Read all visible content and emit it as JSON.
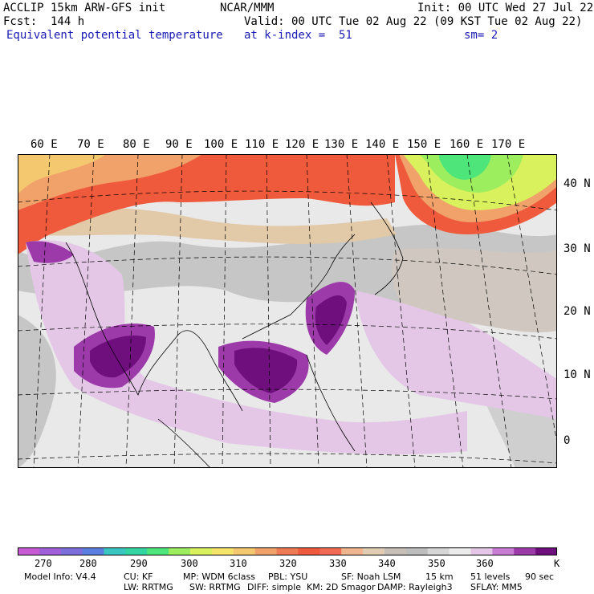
{
  "header": {
    "model": "ACCLIP 15km ARW-GFS init",
    "center": "NCAR/MMM",
    "init": "Init: 00 UTC Wed 27 Jul 22",
    "fcst": "Fcst:  144 h",
    "valid": "Valid: 00 UTC Tue 02 Aug 22 (09 KST Tue 02 Aug 22)",
    "field": "Equivalent potential temperature",
    "level": "at k-index =  51",
    "smooth": "sm= 2"
  },
  "map": {
    "lon_labels": [
      "60 E",
      "70 E",
      "80 E",
      "90 E",
      "100 E",
      "110 E",
      "120 E",
      "130 E",
      "140 E",
      "150 E",
      "160 E",
      "170 E"
    ],
    "lat_labels": [
      "40 N",
      "30 N",
      "20 N",
      "10 N",
      "0"
    ]
  },
  "colorbar": {
    "colors": [
      "#c75bd5",
      "#a15fd9",
      "#7c6edb",
      "#5b7fe0",
      "#39c5c0",
      "#33d6a0",
      "#4ee67a",
      "#9cee5e",
      "#d9f15c",
      "#f6e46a",
      "#f4c86e",
      "#f0a26a",
      "#ef7b54",
      "#ef5a3c",
      "#f26a54",
      "#f0b48f",
      "#e0cdb4",
      "#c6c0b8",
      "#bdbdbd",
      "#d6d6d6",
      "#ececec",
      "#e4c7e7",
      "#c97cd4",
      "#9b3aa8",
      "#6f0f7e"
    ],
    "labels": [
      "270",
      "280",
      "290",
      "300",
      "310",
      "320",
      "330",
      "340",
      "350",
      "360"
    ],
    "unit": "K"
  },
  "footer": {
    "line1": [
      "Model Info: V4.4",
      "CU: KF",
      "MP: WDM 6class",
      "PBL: YSU",
      "SF: Noah LSM",
      "15 km",
      "51 levels",
      "90 sec"
    ],
    "line2": [
      "LW: RRTMG",
      "SW: RRTMG",
      "DIFF: simple",
      "KM: 2D Smagor",
      "DAMP: Rayleigh3",
      "SFLAY: MM5"
    ]
  }
}
